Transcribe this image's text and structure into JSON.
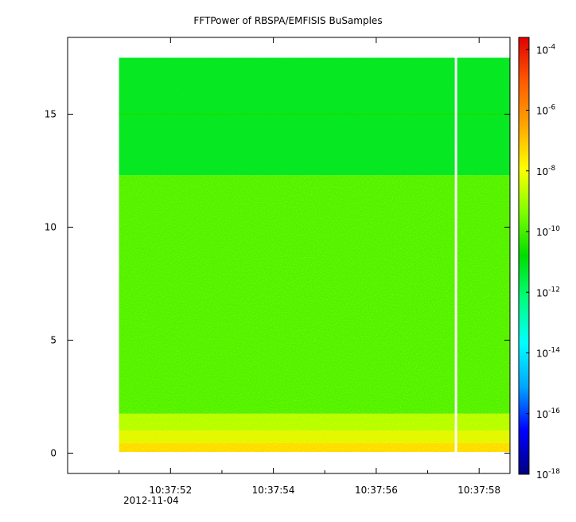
{
  "chart_data": {
    "type": "heatmap",
    "title": "FFTPower of RBSPA/EMFISIS  BuSamples",
    "xlabel": "",
    "ylabel": "",
    "x_ticks": [
      {
        "label": "10:37:52",
        "t": 52
      },
      {
        "label": "10:37:54",
        "t": 54
      },
      {
        "label": "10:37:56",
        "t": 56
      },
      {
        "label": "10:37:58",
        "t": 58
      }
    ],
    "x_minor_ticks": [
      51,
      53,
      55,
      57
    ],
    "x_date_label": "2012-11-04",
    "xlim": [
      50.0,
      58.6
    ],
    "y_ticks": [
      0,
      5,
      10,
      15
    ],
    "ylim": [
      -0.9,
      18.4
    ],
    "data_extent": {
      "x_start": 51.0,
      "x_end": 58.6,
      "y_start": 0.05,
      "y_end": 17.5
    },
    "gap": {
      "t": 57.55
    },
    "bands": [
      {
        "y_from": 0.05,
        "y_to": 0.45,
        "log_power": -7.6
      },
      {
        "y_from": 0.45,
        "y_to": 1.0,
        "log_power": -8.3
      },
      {
        "y_from": 1.0,
        "y_to": 1.75,
        "log_power": -8.9
      },
      {
        "y_from": 1.75,
        "y_to": 12.3,
        "log_power": -10.0
      },
      {
        "y_from": 12.3,
        "y_to": 17.5,
        "log_power": -11.3
      }
    ],
    "line_feature": {
      "y": 15.0,
      "log_power": -10.6
    },
    "colorbar": {
      "scale": "log",
      "range_exp": [
        -18,
        -3.6
      ],
      "tick_exponents": [
        -18,
        -16,
        -14,
        -12,
        -10,
        -8,
        -6,
        -4
      ],
      "base": "10",
      "colors": [
        "#00007f",
        "#0000ff",
        "#00a5ff",
        "#00ffff",
        "#00ff7f",
        "#00dd00",
        "#7fff00",
        "#ffff00",
        "#ffa500",
        "#ff5a00",
        "#e00000"
      ]
    }
  }
}
